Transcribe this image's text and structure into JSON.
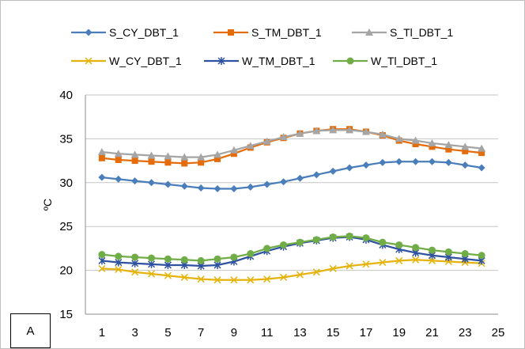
{
  "chart_data": {
    "type": "line",
    "ylabel": "ºC",
    "xlabel": "",
    "xlim": [
      0,
      25
    ],
    "ylim": [
      15,
      40
    ],
    "x_ticks": [
      1,
      3,
      5,
      7,
      9,
      11,
      13,
      15,
      17,
      19,
      21,
      23,
      25
    ],
    "y_ticks": [
      15,
      20,
      25,
      30,
      35,
      40
    ],
    "grid": "horizontal",
    "legend_position": "top",
    "panel_label": "A",
    "x": [
      1,
      2,
      3,
      4,
      5,
      6,
      7,
      8,
      9,
      10,
      11,
      12,
      13,
      14,
      15,
      16,
      17,
      18,
      19,
      20,
      21,
      22,
      23,
      24
    ],
    "series": [
      {
        "name": "S_CY_DBT_1",
        "color": "#4a7ebb",
        "marker": "diamond",
        "values": [
          30.6,
          30.4,
          30.2,
          30.0,
          29.8,
          29.6,
          29.4,
          29.3,
          29.3,
          29.5,
          29.8,
          30.1,
          30.5,
          30.9,
          31.3,
          31.7,
          32.0,
          32.3,
          32.4,
          32.4,
          32.4,
          32.3,
          32.0,
          31.7
        ]
      },
      {
        "name": "S_TM_DBT_1",
        "color": "#e46c0a",
        "marker": "square",
        "values": [
          32.8,
          32.6,
          32.5,
          32.4,
          32.3,
          32.2,
          32.3,
          32.7,
          33.3,
          34.0,
          34.6,
          35.1,
          35.6,
          35.9,
          36.1,
          36.1,
          35.8,
          35.4,
          34.8,
          34.4,
          34.1,
          33.8,
          33.6,
          33.4
        ]
      },
      {
        "name": "S_Tl_DBT_1",
        "color": "#a5a5a5",
        "marker": "triangle",
        "values": [
          33.5,
          33.3,
          33.2,
          33.1,
          33.0,
          32.9,
          32.9,
          33.2,
          33.7,
          34.2,
          34.7,
          35.2,
          35.6,
          35.9,
          36.0,
          36.0,
          35.8,
          35.5,
          35.0,
          34.8,
          34.5,
          34.3,
          34.1,
          33.9
        ]
      },
      {
        "name": "W_CY_DBT_1",
        "color": "#e6b30a",
        "marker": "x",
        "values": [
          20.2,
          20.1,
          19.8,
          19.6,
          19.4,
          19.2,
          19.0,
          18.9,
          18.9,
          18.9,
          19.0,
          19.2,
          19.5,
          19.8,
          20.2,
          20.5,
          20.7,
          20.9,
          21.1,
          21.2,
          21.1,
          21.0,
          20.9,
          20.8
        ]
      },
      {
        "name": "W_TM_DBT_1",
        "color": "#2f52a0",
        "marker": "star",
        "values": [
          21.1,
          20.9,
          20.8,
          20.7,
          20.6,
          20.6,
          20.5,
          20.6,
          21.0,
          21.6,
          22.2,
          22.7,
          23.1,
          23.4,
          23.7,
          23.8,
          23.5,
          22.9,
          22.4,
          22.0,
          21.7,
          21.5,
          21.3,
          21.1
        ]
      },
      {
        "name": "W_Tl_DBT_1",
        "color": "#70ad47",
        "marker": "circle",
        "values": [
          21.8,
          21.6,
          21.5,
          21.4,
          21.3,
          21.2,
          21.1,
          21.3,
          21.5,
          21.9,
          22.5,
          22.9,
          23.2,
          23.5,
          23.8,
          23.9,
          23.7,
          23.2,
          22.9,
          22.6,
          22.3,
          22.1,
          21.9,
          21.7
        ]
      }
    ]
  }
}
